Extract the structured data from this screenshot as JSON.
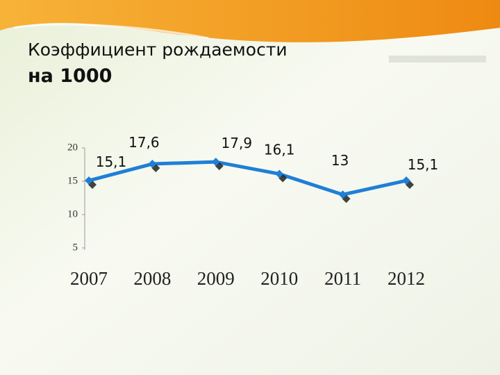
{
  "chart_data": {
    "type": "line",
    "title": "Коэффициент рождаемости",
    "subtitle": "на 1000",
    "categories": [
      "2007",
      "2008",
      "2009",
      "2010",
      "2011",
      "2012"
    ],
    "series": [
      {
        "color": "#1f7fd6",
        "values": [
          15.1,
          17.6,
          17.9,
          16.1,
          13,
          15.1
        ],
        "value_labels": [
          "15,1",
          "17,6",
          "17,9",
          "16,1",
          "13",
          "15,1"
        ]
      }
    ],
    "ylim": [
      5,
      20
    ],
    "yticks": [
      5,
      10,
      15,
      20
    ]
  }
}
